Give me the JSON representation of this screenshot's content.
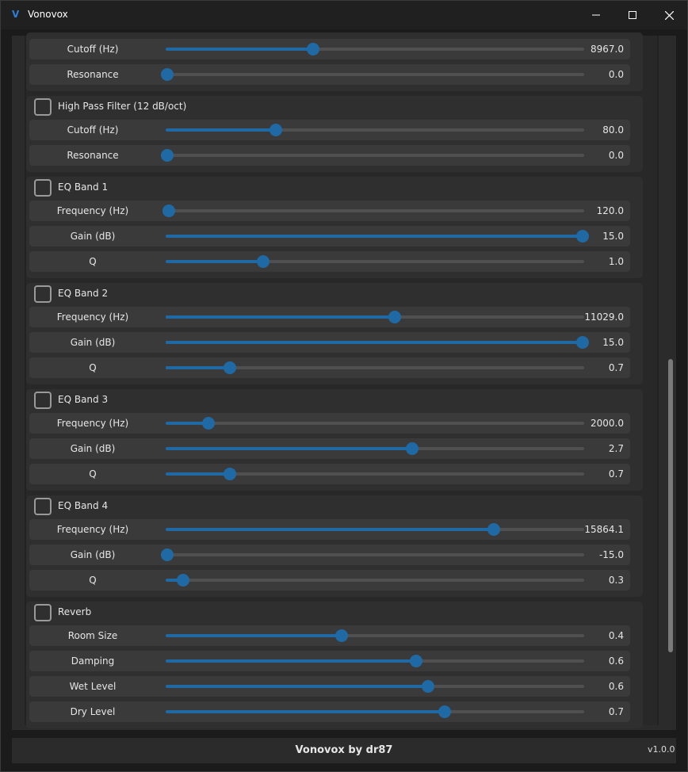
{
  "window": {
    "title": "Vonovox",
    "icon": "V"
  },
  "groups": [
    {
      "id": "lpf",
      "title": "",
      "checked": false,
      "header_visible": false,
      "rows": [
        {
          "label": "Cutoff (Hz)",
          "value": "8967.0",
          "fraction": 0.352
        },
        {
          "label": "Resonance",
          "value": "0.0",
          "fraction": 0.0
        }
      ]
    },
    {
      "id": "hpf",
      "title": "High Pass Filter (12 dB/oct)",
      "checked": false,
      "header_visible": true,
      "rows": [
        {
          "label": "Cutoff (Hz)",
          "value": "80.0",
          "fraction": 0.263
        },
        {
          "label": "Resonance",
          "value": "0.0",
          "fraction": 0.0
        }
      ]
    },
    {
      "id": "eq1",
      "title": "EQ Band 1",
      "checked": false,
      "header_visible": true,
      "rows": [
        {
          "label": "Frequency (Hz)",
          "value": "120.0",
          "fraction": 0.008
        },
        {
          "label": "Gain (dB)",
          "value": "15.0",
          "fraction": 1.0
        },
        {
          "label": "Q",
          "value": "1.0",
          "fraction": 0.233
        }
      ]
    },
    {
      "id": "eq2",
      "title": "EQ Band 2",
      "checked": false,
      "header_visible": true,
      "rows": [
        {
          "label": "Frequency (Hz)",
          "value": "11029.0",
          "fraction": 0.548
        },
        {
          "label": "Gain (dB)",
          "value": "15.0",
          "fraction": 1.0
        },
        {
          "label": "Q",
          "value": "0.7",
          "fraction": 0.153
        }
      ]
    },
    {
      "id": "eq3",
      "title": "EQ Band 3",
      "checked": false,
      "header_visible": true,
      "rows": [
        {
          "label": "Frequency (Hz)",
          "value": "2000.0",
          "fraction": 0.102
        },
        {
          "label": "Gain (dB)",
          "value": "2.7",
          "fraction": 0.589
        },
        {
          "label": "Q",
          "value": "0.7",
          "fraction": 0.153
        }
      ]
    },
    {
      "id": "eq4",
      "title": "EQ Band 4",
      "checked": false,
      "header_visible": true,
      "rows": [
        {
          "label": "Frequency (Hz)",
          "value": "15864.1",
          "fraction": 0.784
        },
        {
          "label": "Gain (dB)",
          "value": "-15.0",
          "fraction": 0.0
        },
        {
          "label": "Q",
          "value": "0.3",
          "fraction": 0.042
        }
      ]
    },
    {
      "id": "reverb",
      "title": "Reverb",
      "checked": false,
      "header_visible": true,
      "rows": [
        {
          "label": "Room Size",
          "value": "0.4",
          "fraction": 0.42
        },
        {
          "label": "Damping",
          "value": "0.6",
          "fraction": 0.598
        },
        {
          "label": "Wet Level",
          "value": "0.6",
          "fraction": 0.627
        },
        {
          "label": "Dry Level",
          "value": "0.7",
          "fraction": 0.667
        }
      ]
    }
  ],
  "footer": {
    "title": "Vonovox by dr87",
    "version": "v1.0.0"
  },
  "colors": {
    "accent": "#1f6aa5",
    "track": "#505050",
    "row_bg": "#3a3a3a"
  }
}
